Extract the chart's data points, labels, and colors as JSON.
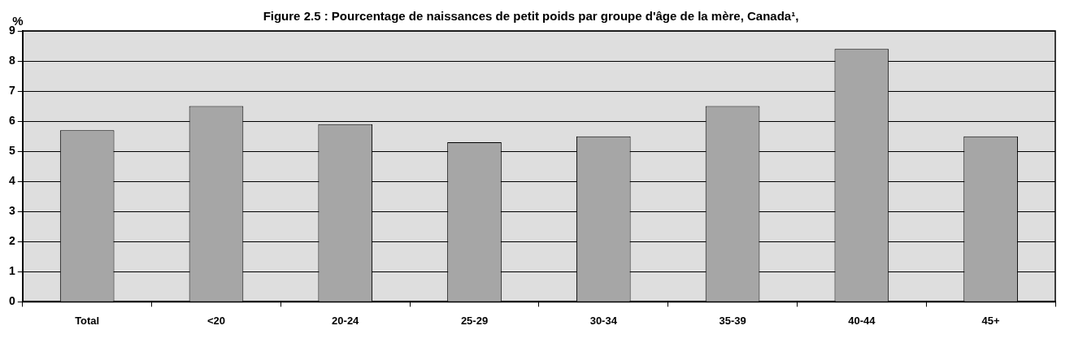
{
  "chart_data": {
    "type": "bar",
    "title": "Figure 2.5 : Pourcentage de naissances de petit poids par groupe d'âge de la mère, Canada¹,",
    "ylabel": "%",
    "categories": [
      "Total",
      "<20",
      "20-24",
      "25-29",
      "30-34",
      "35-39",
      "40-44",
      "45+"
    ],
    "values": [
      5.7,
      6.5,
      5.9,
      5.3,
      5.5,
      6.5,
      8.4,
      5.5
    ],
    "color": "#a6a6a6",
    "ylim": [
      0,
      9
    ],
    "yticks": [
      0,
      1,
      2,
      3,
      4,
      5,
      6,
      7,
      8,
      9
    ],
    "grid": "y"
  }
}
